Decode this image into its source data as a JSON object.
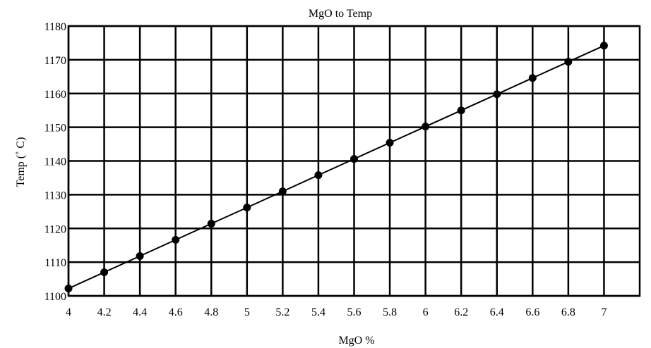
{
  "chart_data": {
    "type": "line",
    "title": "MgO to Temp",
    "xlabel": "MgO %",
    "ylabel": "Temp (˚ C)",
    "xlim": [
      4,
      7.2
    ],
    "ylim": [
      1100,
      1180
    ],
    "x_ticks": [
      4,
      4.2,
      4.4,
      4.6,
      4.8,
      5,
      5.2,
      5.4,
      5.6,
      5.8,
      6,
      6.2,
      6.4,
      6.6,
      6.8,
      7
    ],
    "y_ticks": [
      1100,
      1110,
      1120,
      1130,
      1140,
      1150,
      1160,
      1170,
      1180
    ],
    "grid": true,
    "legend": "none",
    "colors": {
      "line": "#000000",
      "marker": "#000000",
      "grid": "#000000"
    },
    "series": [
      {
        "x": [
          4,
          4.2,
          4.4,
          4.6,
          4.8,
          5,
          5.2,
          5.4,
          5.6,
          5.8,
          6,
          6.2,
          6.4,
          6.6,
          6.8,
          7
        ],
        "y": [
          1102.2,
          1107,
          1111.8,
          1116.6,
          1121.4,
          1126.2,
          1131,
          1135.8,
          1140.6,
          1145.4,
          1150.2,
          1155,
          1159.8,
          1164.6,
          1169.4,
          1174.2
        ]
      }
    ]
  }
}
